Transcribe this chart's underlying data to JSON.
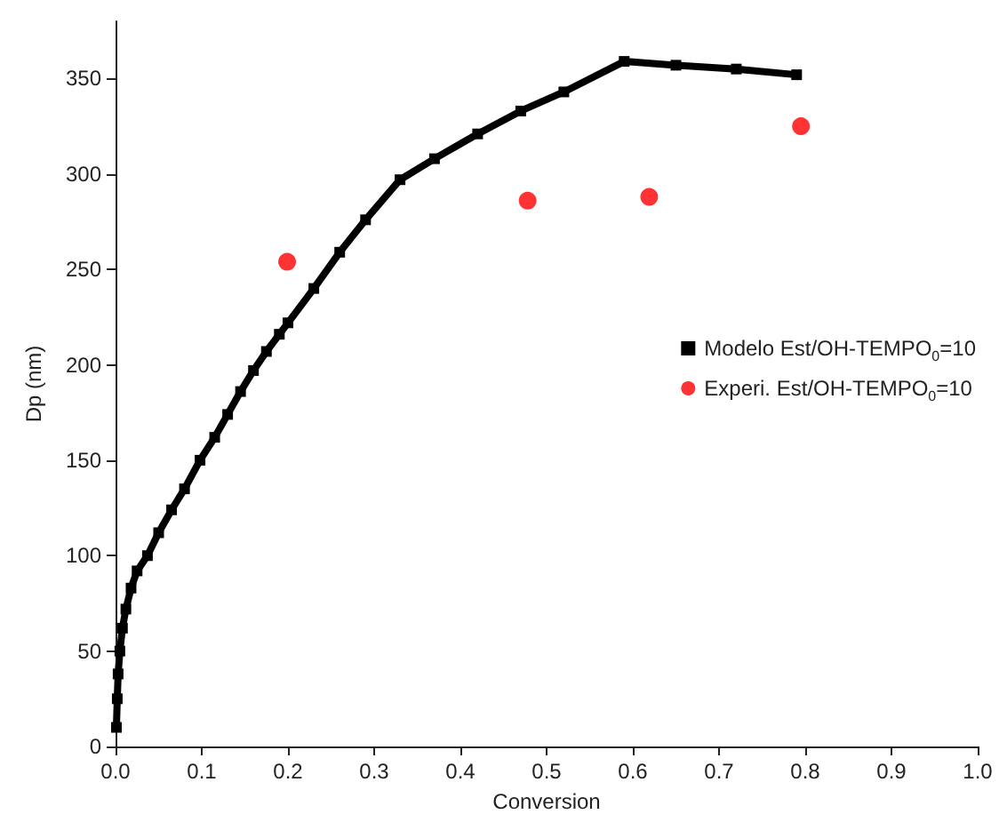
{
  "chart_data": {
    "type": "line",
    "xlabel": "Conversion",
    "ylabel": "Dp (nm)",
    "xlim": [
      0,
      1.0
    ],
    "ylim": [
      0,
      380
    ],
    "xticks": [
      {
        "value": 0,
        "label": "0.0"
      },
      0.1,
      0.2,
      0.3,
      0.4,
      0.5,
      0.6,
      0.7,
      0.8,
      0.9,
      {
        "value": 1.0,
        "label": "1.0"
      }
    ],
    "yticks": [
      0,
      50,
      100,
      150,
      200,
      250,
      300,
      350
    ],
    "grid": false,
    "legend": "right",
    "series": [
      {
        "name": "Modelo Est/OH-TEMPO$_{0}$=10",
        "color": "#000000",
        "marker": "square",
        "x": [
          0.001,
          0.002,
          0.003,
          0.005,
          0.008,
          0.012,
          0.018,
          0.025,
          0.037,
          0.05,
          0.065,
          0.08,
          0.098,
          0.115,
          0.13,
          0.145,
          0.16,
          0.175,
          0.19,
          0.2,
          0.23,
          0.26,
          0.29,
          0.33,
          0.37,
          0.42,
          0.47,
          0.52,
          0.59,
          0.65,
          0.72,
          0.79
        ],
        "values": [
          10,
          25,
          38,
          50,
          62,
          72,
          83,
          92,
          100,
          112,
          124,
          135,
          150,
          162,
          174,
          186,
          197,
          207,
          216,
          222,
          240,
          259,
          276,
          297,
          308,
          321,
          333,
          343,
          359,
          357,
          355,
          352
        ]
      },
      {
        "name": "Experi. Est/OH-TEMPO$_{0}$=10",
        "color": "#ff0000",
        "type": "scatter",
        "marker": "circle",
        "x": [
          0.199,
          0.478,
          0.619,
          0.795
        ],
        "values": [
          254,
          286,
          288,
          325
        ]
      }
    ]
  }
}
